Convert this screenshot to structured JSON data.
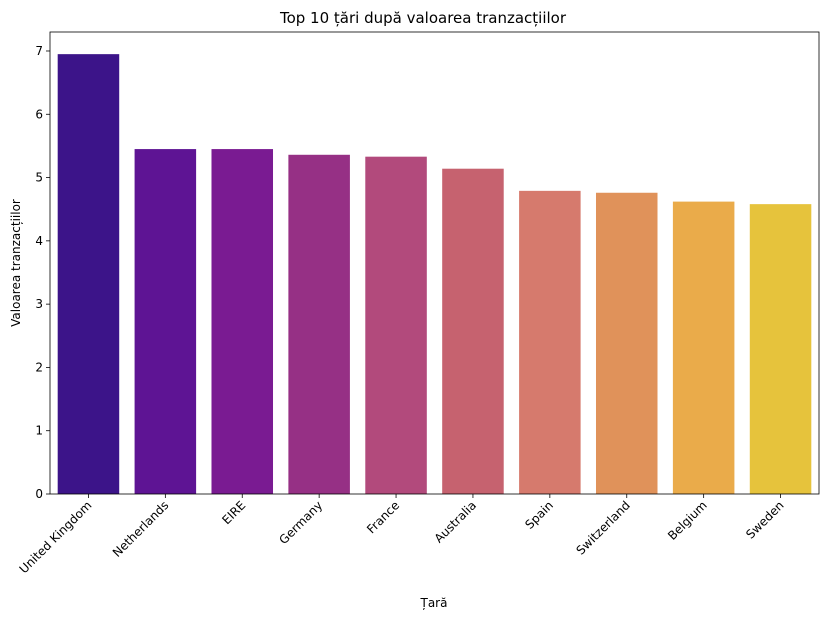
{
  "chart_data": {
    "type": "bar",
    "title": "Top 10 țări după valoarea tranzacțiilor",
    "xlabel": "Țară",
    "ylabel": "Valoarea tranzacțiilor",
    "categories": [
      "United Kingdom",
      "Netherlands",
      "EIRE",
      "Germany",
      "France",
      "Australia",
      "Spain",
      "Switzerland",
      "Belgium",
      "Sweden"
    ],
    "values": [
      6.95,
      5.45,
      5.45,
      5.36,
      5.33,
      5.14,
      4.79,
      4.76,
      4.62,
      4.58
    ],
    "colors": [
      "#3c1489",
      "#5e1494",
      "#7a1b92",
      "#963085",
      "#b24a7c",
      "#c6626f",
      "#d67a6d",
      "#e0925a",
      "#eaab4a",
      "#e6c33c"
    ],
    "ylim": [
      0,
      7.3
    ],
    "yticks": [
      0,
      1,
      2,
      3,
      4,
      5,
      6,
      7
    ],
    "grid": false,
    "legend": "none"
  }
}
